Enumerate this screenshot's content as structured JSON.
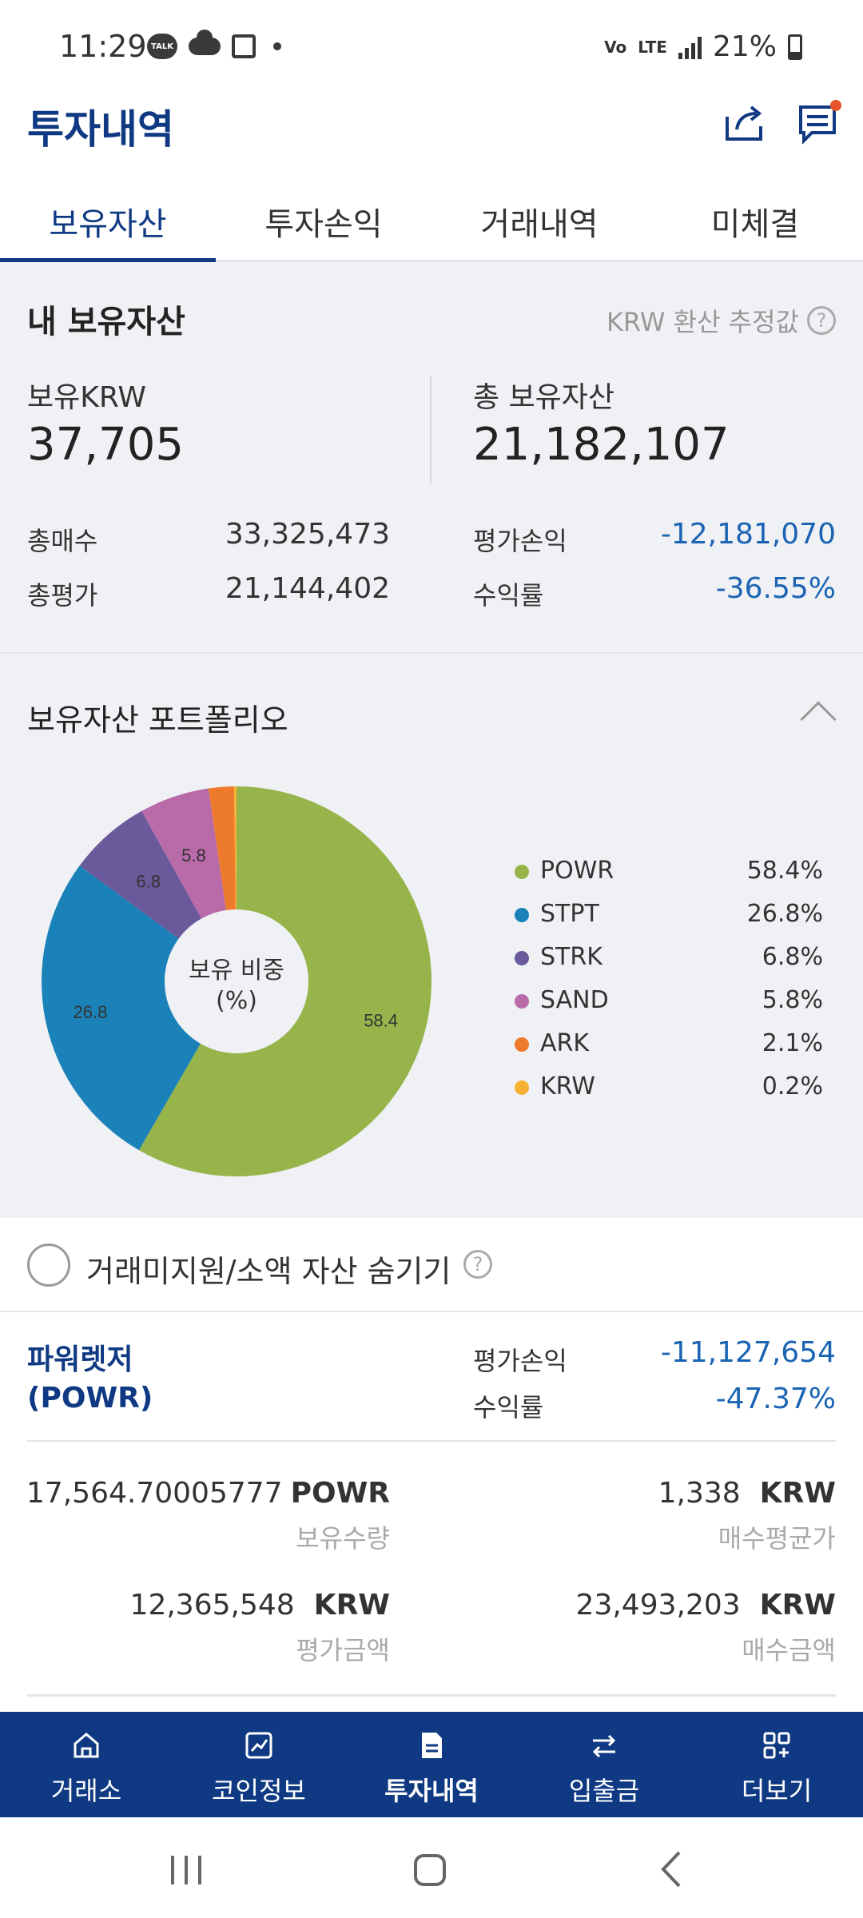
{
  "status_bar": {
    "time": "11:29",
    "talk": "TALK",
    "net": "LTE",
    "battery": "21%"
  },
  "header": {
    "title": "투자내역"
  },
  "tabs": [
    "보유자산",
    "투자손익",
    "거래내역",
    "미체결"
  ],
  "summary": {
    "title": "내 보유자산",
    "estimate_note": "KRW 환산 추정값",
    "krw_label": "보유KRW",
    "krw_value": "37,705",
    "total_label": "총 보유자산",
    "total_value": "21,182,107",
    "buy_label": "총매수",
    "buy_value": "33,325,473",
    "eval_label": "총평가",
    "eval_value": "21,144,402",
    "pnl_label": "평가손익",
    "pnl_value": "-12,181,070",
    "rate_label": "수익률",
    "rate_value": "-36.55%"
  },
  "portfolio": {
    "title": "보유자산 포트폴리오",
    "center_label_1": "보유 비중",
    "center_label_2": "(%)"
  },
  "chart_data": {
    "type": "pie",
    "categories": [
      "POWR",
      "STPT",
      "STRK",
      "SAND",
      "ARK",
      "KRW"
    ],
    "values": [
      58.4,
      26.8,
      6.8,
      5.8,
      2.1,
      0.2
    ],
    "value_labels": [
      "58.4%",
      "26.8%",
      "6.8%",
      "5.8%",
      "2.1%",
      "0.2%"
    ],
    "slice_labels": [
      "58.4",
      "26.8",
      "6.8",
      "5.8",
      "",
      ""
    ],
    "colors": [
      "#97b44a",
      "#1a82b8",
      "#6a5a9c",
      "#b96aa8",
      "#ee7a2b",
      "#f6b233"
    ]
  },
  "hide_option": {
    "label": "거래미지원/소액 자산 숨기기"
  },
  "asset": {
    "name_line1": "파워렛저",
    "name_line2": "(POWR)",
    "pnl_label": "평가손익",
    "pnl_value": "-11,127,654",
    "rate_label": "수익률",
    "rate_value": "-47.37%",
    "qty_value": "17,564.70005777",
    "qty_unit": "POWR",
    "qty_label": "보유수량",
    "avg_value": "1,338",
    "avg_unit": "KRW",
    "avg_label": "매수평균가",
    "eval_value": "12,365,548",
    "eval_unit": "KRW",
    "eval_label": "평가금액",
    "buy_value": "23,493,203",
    "buy_unit": "KRW",
    "buy_label": "매수금액"
  },
  "bottom_nav": [
    "거래소",
    "코인정보",
    "투자내역",
    "입출금",
    "더보기"
  ]
}
